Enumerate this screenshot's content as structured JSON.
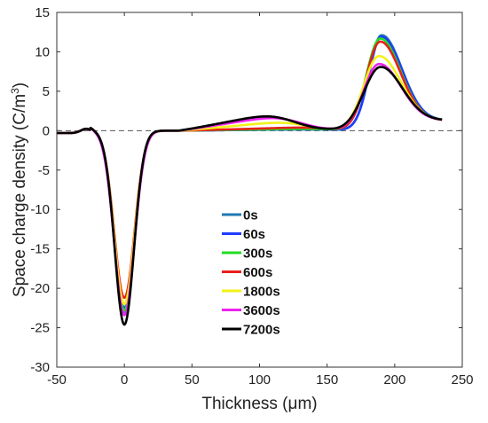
{
  "chart_data": {
    "type": "line",
    "title": "",
    "xlabel": "Thickness (μm)",
    "ylabel": "Space charge density (C/m³)",
    "ylabel_main": "Space charge density (C/m",
    "ylabel_sup": "3",
    "ylabel_end": ")",
    "xlim": [
      -50,
      250
    ],
    "ylim": [
      -30,
      15
    ],
    "xticks": [
      -50,
      0,
      50,
      100,
      150,
      200,
      250
    ],
    "yticks": [
      -30,
      -25,
      -20,
      -15,
      -10,
      -5,
      0,
      5,
      10,
      15
    ],
    "grid": false,
    "legend_position": "center",
    "reference_line": {
      "y": 0,
      "style": "dashed",
      "color": "#555555"
    },
    "series": [
      {
        "name": "0s",
        "color": "#1f77b4",
        "peak_x": 0,
        "peak_y": -23.0,
        "peak_w": 7.5,
        "pos_x": 190,
        "pos_y": 11.8,
        "pos_wl": 9,
        "pos_wr": 15,
        "plateau": 0.15,
        "rise_start": 158,
        "rise_ramp": 2.0,
        "bulk_slope": 0.0
      },
      {
        "name": "60s",
        "color": "#1f3cff",
        "peak_x": 0,
        "peak_y": -22.5,
        "peak_w": 7.5,
        "pos_x": 190,
        "pos_y": 11.6,
        "pos_wl": 9,
        "pos_wr": 15,
        "plateau": 0.15,
        "rise_start": 158,
        "rise_ramp": 2.0,
        "bulk_slope": 0.0
      },
      {
        "name": "300s",
        "color": "#22dd22",
        "peak_x": 0,
        "peak_y": -22.8,
        "peak_w": 7.5,
        "pos_x": 189,
        "pos_y": 11.4,
        "pos_wl": 10,
        "pos_wr": 15,
        "plateau": 0.2,
        "rise_start": 155,
        "rise_ramp": 2.0,
        "bulk_slope": 0.0
      },
      {
        "name": "600s",
        "color": "#e8201c",
        "peak_x": 0,
        "peak_y": -21.2,
        "peak_w": 7.5,
        "pos_x": 189,
        "pos_y": 11.0,
        "pos_wl": 10,
        "pos_wr": 15,
        "plateau": 0.3,
        "rise_start": 150,
        "rise_ramp": 2.0,
        "bulk_slope": 0.002
      },
      {
        "name": "1800s",
        "color": "#f2f21a",
        "peak_x": 0,
        "peak_y": -22.0,
        "peak_w": 7.5,
        "pos_x": 188,
        "pos_y": 9.2,
        "pos_wl": 11,
        "pos_wr": 16,
        "plateau": 1.0,
        "rise_start": 130,
        "rise_ramp": 2.2,
        "bulk_slope": 0.008
      },
      {
        "name": "3600s",
        "color": "#ee22ee",
        "peak_x": 0,
        "peak_y": -23.4,
        "peak_w": 7.5,
        "pos_x": 188,
        "pos_y": 8.2,
        "pos_wl": 11,
        "pos_wr": 16,
        "plateau": 1.8,
        "rise_start": 125,
        "rise_ramp": 2.0,
        "bulk_slope": 0.012
      },
      {
        "name": "7200s",
        "color": "#000000",
        "peak_x": 0,
        "peak_y": -24.6,
        "peak_w": 7.2,
        "pos_x": 189,
        "pos_y": 7.8,
        "pos_wl": 12,
        "pos_wr": 16,
        "plateau": 2.2,
        "rise_start": 120,
        "rise_ramp": 2.2,
        "bulk_slope": 0.016
      }
    ]
  }
}
